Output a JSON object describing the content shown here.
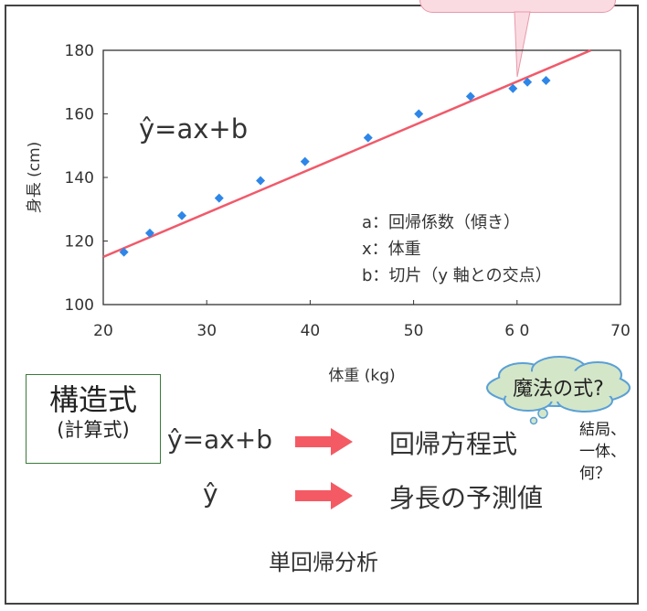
{
  "chart_data": {
    "type": "scatter",
    "xlabel": "体重 (kg)",
    "ylabel": "身長 (cm)",
    "xlim": [
      20,
      70
    ],
    "ylim": [
      100,
      180
    ],
    "xticks": [
      20,
      30,
      40,
      50,
      60,
      70
    ],
    "xtick_labels": [
      "20",
      "30",
      "40",
      "50",
      "6 0",
      "70"
    ],
    "yticks": [
      100,
      120,
      140,
      160,
      180
    ],
    "ytick_labels": [
      "100",
      "120",
      "140",
      "160",
      "180"
    ],
    "points": [
      {
        "x": 22,
        "y": 116.5
      },
      {
        "x": 24.5,
        "y": 122.5
      },
      {
        "x": 27.6,
        "y": 128
      },
      {
        "x": 31.2,
        "y": 133.5
      },
      {
        "x": 35.2,
        "y": 139
      },
      {
        "x": 39.5,
        "y": 145
      },
      {
        "x": 45.6,
        "y": 152.5
      },
      {
        "x": 50.5,
        "y": 160
      },
      {
        "x": 55.5,
        "y": 165.5
      },
      {
        "x": 59.6,
        "y": 168
      },
      {
        "x": 61,
        "y": 170
      },
      {
        "x": 62.8,
        "y": 170.5
      }
    ],
    "fit_line": {
      "x": [
        20,
        67.5
      ],
      "y": [
        115,
        180.5
      ]
    },
    "point_color": "#2e86e8",
    "line_color": "#f05a6a",
    "grid": false
  },
  "chart_formula": "ŷ=ax+b",
  "legend_lines": [
    "a：回帰係数（傾き）",
    "x：体重",
    "b：切片（y 軸との交点）"
  ],
  "structure_box": {
    "main": "構造式",
    "sub": "(計算式)"
  },
  "rows": [
    {
      "left": "ŷ=ax+b",
      "right": "回帰方程式"
    },
    {
      "left": "ŷ",
      "right": "身長の予測値"
    }
  ],
  "cloud_text": "魔法の式?",
  "side_note": [
    "結局、",
    "一体、",
    "何？"
  ],
  "footer": "単回帰分析",
  "colors": {
    "arrow": "#f45a63",
    "cloud_fill": "#d4e6c8",
    "cloud_stroke": "#5aa0d6"
  }
}
